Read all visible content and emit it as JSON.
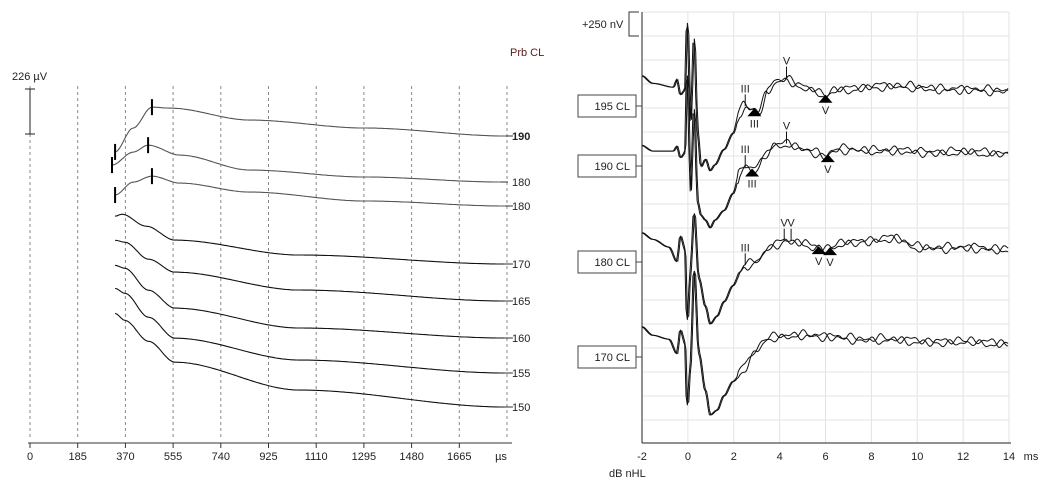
{
  "chart_data": [
    {
      "type": "line",
      "title": "Prb CL",
      "xlabel": "µs",
      "x_ticks": [
        0,
        185,
        370,
        555,
        740,
        925,
        1110,
        1295,
        1480,
        1665
      ],
      "xlim": [
        0,
        1850
      ],
      "scale_bar_label": "226 µV",
      "scale_bar_value_uV": 226,
      "note": "y values are µV relative to each trace's end level",
      "series": [
        {
          "name": "190",
          "bold": true,
          "markers_us": [
            330,
            473
          ],
          "points": [
            [
              330,
              -80
            ],
            [
              400,
              40
            ],
            [
              473,
              145
            ],
            [
              543,
              140
            ],
            [
              853,
              80
            ],
            [
              1300,
              40
            ],
            [
              1842,
              0
            ]
          ]
        },
        {
          "name": "180",
          "bold": false,
          "markers_us": [
            318,
            458
          ],
          "points": [
            [
              318,
              85
            ],
            [
              400,
              150
            ],
            [
              458,
              185
            ],
            [
              582,
              135
            ],
            [
              853,
              60
            ],
            [
              1300,
              25
            ],
            [
              1823,
              0
            ]
          ]
        },
        {
          "name": "180",
          "bold": false,
          "markers_us": [
            330,
            473
          ],
          "points": [
            [
              330,
              55
            ],
            [
              400,
              120
            ],
            [
              473,
              150
            ],
            [
              582,
              115
            ],
            [
              853,
              70
            ],
            [
              1300,
              25
            ],
            [
              1842,
              0
            ]
          ]
        },
        {
          "name": "170",
          "bold": false,
          "markers_us": [],
          "points": [
            [
              330,
              240
            ],
            [
              357,
              250
            ],
            [
              450,
              190
            ],
            [
              562,
              120
            ],
            [
              1047,
              45
            ],
            [
              1842,
              0
            ]
          ]
        },
        {
          "name": "165",
          "bold": false,
          "markers_us": [],
          "points": [
            [
              330,
              305
            ],
            [
              368,
              295
            ],
            [
              460,
              210
            ],
            [
              562,
              145
            ],
            [
              1047,
              55
            ],
            [
              1842,
              0
            ]
          ]
        },
        {
          "name": "160",
          "bold": false,
          "markers_us": [],
          "points": [
            [
              330,
              365
            ],
            [
              368,
              350
            ],
            [
              460,
              240
            ],
            [
              562,
              150
            ],
            [
              1047,
              50
            ],
            [
              1842,
              0
            ]
          ]
        },
        {
          "name": "155",
          "bold": false,
          "markers_us": [],
          "points": [
            [
              330,
              425
            ],
            [
              368,
              400
            ],
            [
              460,
              280
            ],
            [
              562,
              175
            ],
            [
              1047,
              65
            ],
            [
              1842,
              0
            ]
          ]
        },
        {
          "name": "150",
          "bold": false,
          "markers_us": [],
          "points": [
            [
              330,
              470
            ],
            [
              368,
              435
            ],
            [
              460,
              330
            ],
            [
              562,
              225
            ],
            [
              1047,
              85
            ],
            [
              1842,
              0
            ]
          ]
        }
      ]
    },
    {
      "type": "line",
      "xlabel": "ms",
      "ylabel": "dB nHL",
      "xlim": [
        -2,
        14
      ],
      "x_ticks": [
        -2,
        0,
        2,
        4,
        6,
        8,
        10,
        12,
        14
      ],
      "scale_bar_label": "+250 nV",
      "scale_bar_value_nV": 250,
      "grid": true,
      "note": "y values are nV relative to each trace baseline",
      "series": [
        {
          "name": "195 CL",
          "points": [
            [
              -2,
              170
            ],
            [
              -1.5,
              90
            ],
            [
              -0.6,
              50
            ],
            [
              -0.45,
              130
            ],
            [
              -0.3,
              -30
            ],
            [
              -0.1,
              20
            ],
            [
              0,
              800
            ],
            [
              0.15,
              -300
            ],
            [
              0.3,
              600
            ],
            [
              0.45,
              -400
            ],
            [
              0.6,
              -780
            ],
            [
              0.8,
              -700
            ],
            [
              1.0,
              -820
            ],
            [
              1.2,
              -760
            ],
            [
              1.6,
              -600
            ],
            [
              2.0,
              -430
            ],
            [
              2.3,
              -200
            ],
            [
              2.5,
              -150
            ],
            [
              2.8,
              -180
            ],
            [
              3.1,
              -220
            ],
            [
              3.5,
              0
            ],
            [
              3.8,
              100
            ],
            [
              4.3,
              140
            ],
            [
              5,
              60
            ],
            [
              5.5,
              20
            ],
            [
              6,
              -50
            ],
            [
              6.5,
              20
            ],
            [
              7,
              30
            ],
            [
              8,
              60
            ],
            [
              10,
              50
            ],
            [
              12,
              20
            ],
            [
              14,
              20
            ]
          ],
          "peaks": [
            {
              "label": "III",
              "ms": 2.5,
              "type": "tick"
            },
            {
              "label": "V",
              "ms": 4.3,
              "type": "tick"
            },
            {
              "label": "III",
              "ms": 2.9,
              "type": "triangle"
            },
            {
              "label": "V",
              "ms": 6.0,
              "type": "triangle"
            }
          ]
        },
        {
          "name": "190 CL",
          "points": [
            [
              -2,
              80
            ],
            [
              -1.5,
              20
            ],
            [
              -0.6,
              20
            ],
            [
              -0.45,
              70
            ],
            [
              -0.3,
              -50
            ],
            [
              -0.1,
              0
            ],
            [
              0,
              900
            ],
            [
              0.15,
              -400
            ],
            [
              0.3,
              500
            ],
            [
              0.45,
              -500
            ],
            [
              0.6,
              -650
            ],
            [
              0.8,
              -700
            ],
            [
              1.0,
              -780
            ],
            [
              1.2,
              -700
            ],
            [
              1.6,
              -600
            ],
            [
              2.0,
              -420
            ],
            [
              2.3,
              -200
            ],
            [
              2.6,
              -130
            ],
            [
              2.9,
              -200
            ],
            [
              3.3,
              -60
            ],
            [
              3.8,
              80
            ],
            [
              4.4,
              100
            ],
            [
              5,
              50
            ],
            [
              5.5,
              10
            ],
            [
              6,
              -40
            ],
            [
              6.5,
              30
            ],
            [
              7,
              40
            ],
            [
              9,
              20
            ],
            [
              11,
              10
            ],
            [
              14,
              0
            ]
          ],
          "peaks": [
            {
              "label": "III",
              "ms": 2.5,
              "type": "tick"
            },
            {
              "label": "V",
              "ms": 4.3,
              "type": "tick"
            },
            {
              "label": "III",
              "ms": 2.8,
              "type": "triangle"
            },
            {
              "label": "V",
              "ms": 6.1,
              "type": "triangle"
            }
          ]
        },
        {
          "name": "180 CL",
          "points": [
            [
              -2,
              170
            ],
            [
              -1.5,
              100
            ],
            [
              -0.8,
              20
            ],
            [
              -0.45,
              -130
            ],
            [
              -0.3,
              140
            ],
            [
              -0.1,
              0
            ],
            [
              0,
              -800
            ],
            [
              0.15,
              -200
            ],
            [
              0.3,
              400
            ],
            [
              0.5,
              -300
            ],
            [
              0.8,
              -600
            ],
            [
              1.0,
              -780
            ],
            [
              1.3,
              -700
            ],
            [
              1.6,
              -550
            ],
            [
              2.0,
              -380
            ],
            [
              2.3,
              -250
            ],
            [
              2.5,
              -170
            ],
            [
              2.8,
              -160
            ],
            [
              3.1,
              -120
            ],
            [
              3.6,
              20
            ],
            [
              4.3,
              90
            ],
            [
              5,
              70
            ],
            [
              5.5,
              20
            ],
            [
              6,
              -10
            ],
            [
              7,
              70
            ],
            [
              8,
              90
            ],
            [
              9,
              110
            ],
            [
              10,
              20
            ],
            [
              12,
              10
            ],
            [
              14,
              0
            ]
          ],
          "peaks": [
            {
              "label": "III",
              "ms": 2.5,
              "type": "tick"
            },
            {
              "label": "V",
              "ms": 4.2,
              "type": "tick"
            },
            {
              "label": "V",
              "ms": 4.5,
              "type": "tick"
            },
            {
              "label": "V",
              "ms": 5.7,
              "type": "triangle"
            },
            {
              "label": "V",
              "ms": 6.2,
              "type": "triangle"
            }
          ]
        },
        {
          "name": "170 CL",
          "points": [
            [
              -2,
              170
            ],
            [
              -1.5,
              80
            ],
            [
              -0.8,
              40
            ],
            [
              -0.45,
              -110
            ],
            [
              -0.3,
              140
            ],
            [
              -0.1,
              0
            ],
            [
              0,
              -700
            ],
            [
              0.15,
              -200
            ],
            [
              0.3,
              800
            ],
            [
              0.5,
              -100
            ],
            [
              0.8,
              -500
            ],
            [
              1.0,
              -750
            ],
            [
              1.3,
              -700
            ],
            [
              1.6,
              -550
            ],
            [
              2.0,
              -400
            ],
            [
              2.5,
              -250
            ],
            [
              3,
              -80
            ],
            [
              3.5,
              40
            ],
            [
              4,
              70
            ],
            [
              5,
              90
            ],
            [
              6,
              60
            ],
            [
              8,
              40
            ],
            [
              10,
              20
            ],
            [
              12,
              10
            ],
            [
              14,
              0
            ]
          ],
          "peaks": []
        }
      ]
    }
  ]
}
